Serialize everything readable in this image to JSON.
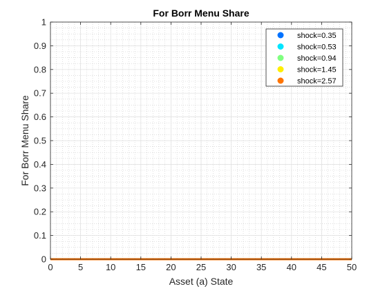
{
  "chart_data": {
    "type": "scatter",
    "title": "For Borr Menu Share",
    "xlabel": "Asset (a) State",
    "ylabel": "For Borr Menu Share",
    "xlim": [
      0,
      50
    ],
    "ylim": [
      0,
      1
    ],
    "xticks": [
      0,
      5,
      10,
      15,
      20,
      25,
      30,
      35,
      40,
      45,
      50
    ],
    "yticks": [
      0,
      0.1,
      0.2,
      0.3,
      0.4,
      0.5,
      0.6,
      0.7,
      0.8,
      0.9,
      1
    ],
    "xtick_labels": [
      "0",
      "5",
      "10",
      "15",
      "20",
      "25",
      "30",
      "35",
      "40",
      "45",
      "50"
    ],
    "ytick_labels": [
      "0",
      "0.1",
      "0.2",
      "0.3",
      "0.4",
      "0.5",
      "0.6",
      "0.7",
      "0.8",
      "0.9",
      "1"
    ],
    "grid": true,
    "minor_grid": true,
    "legend_position": "top-right",
    "series": [
      {
        "name": "shock=0.35",
        "color": "#0072ff",
        "x": [
          0,
          50
        ],
        "y": [
          0,
          0
        ]
      },
      {
        "name": "shock=0.53",
        "color": "#00e5ff",
        "x": [
          0,
          50
        ],
        "y": [
          0,
          0
        ]
      },
      {
        "name": "shock=0.94",
        "color": "#80ff80",
        "x": [
          0,
          50
        ],
        "y": [
          0,
          0
        ]
      },
      {
        "name": "shock=1.45",
        "color": "#ffee00",
        "x": [
          0,
          50
        ],
        "y": [
          0,
          0
        ]
      },
      {
        "name": "shock=2.57",
        "color": "#ff7400",
        "x": [
          0,
          50
        ],
        "y": [
          0,
          0
        ]
      }
    ]
  }
}
